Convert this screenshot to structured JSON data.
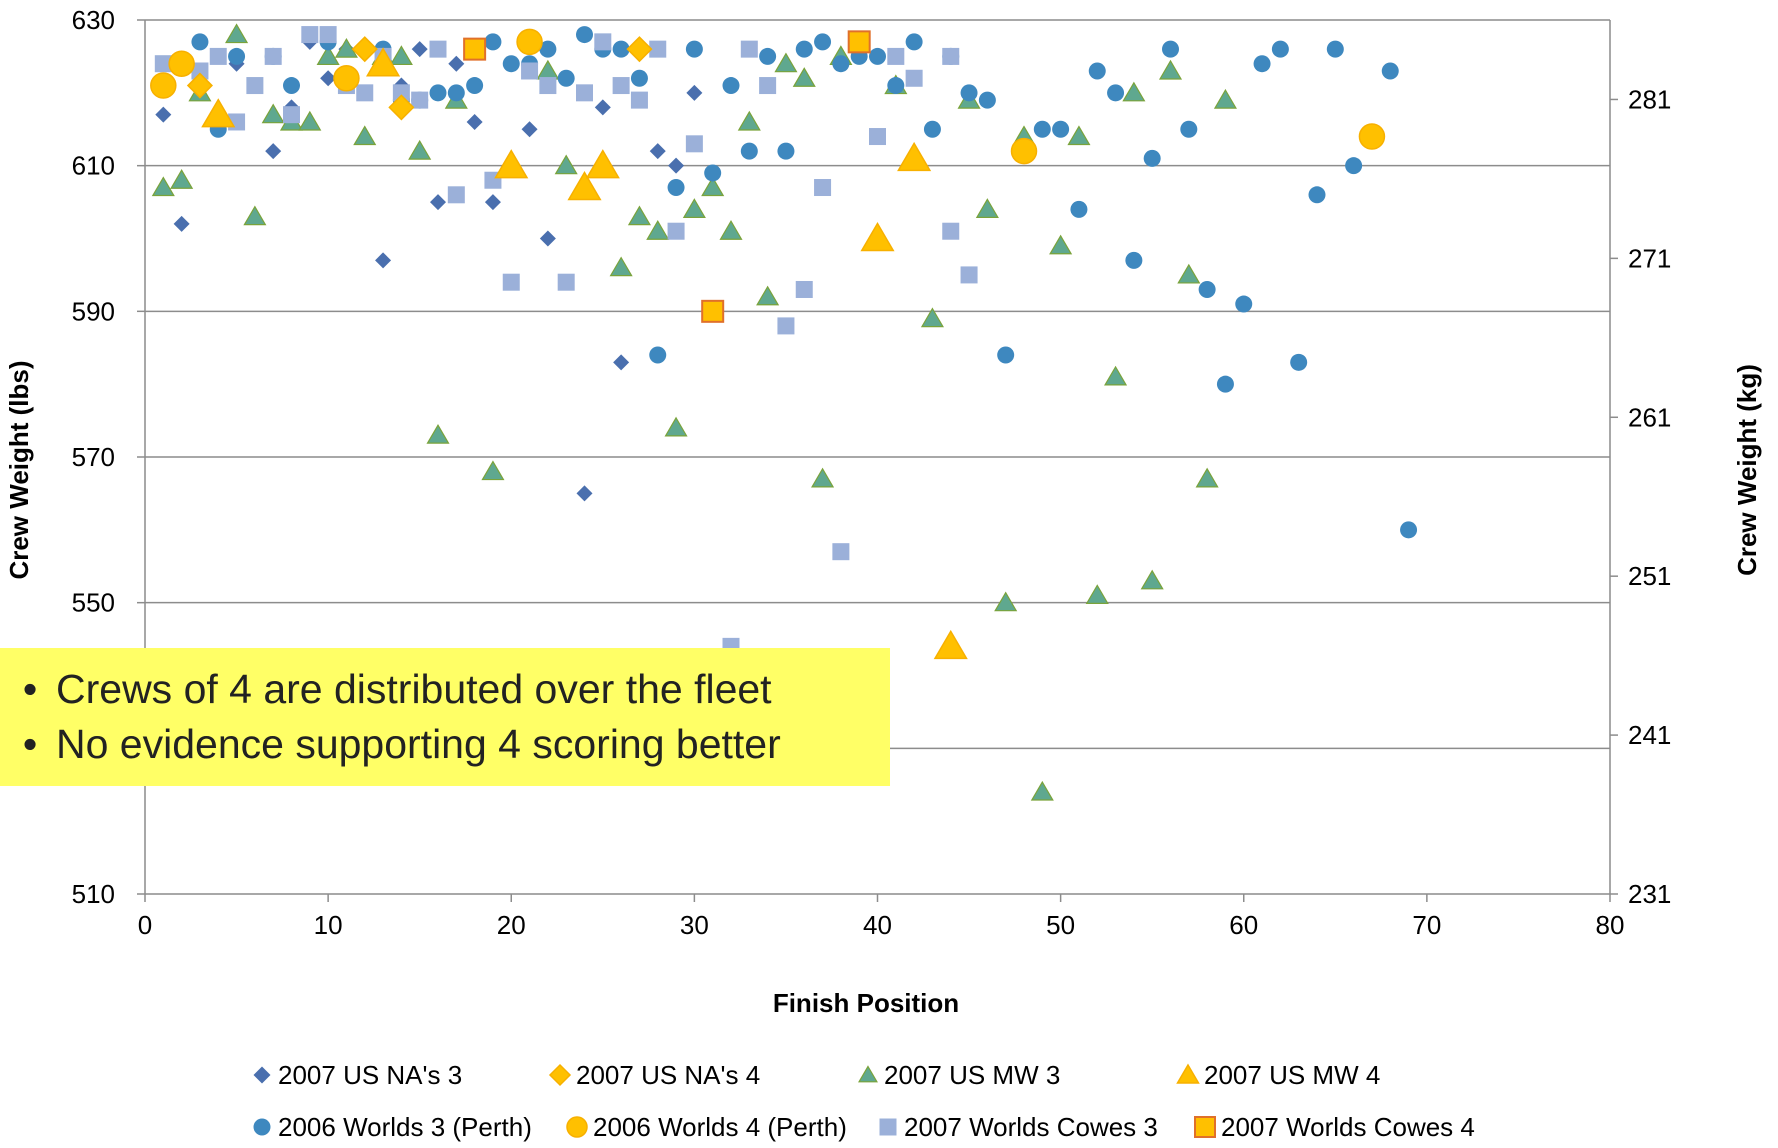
{
  "chart_data": {
    "type": "scatter",
    "xlabel": "Finish Position",
    "ylabel": "Crew Weight (lbs)",
    "y2label": "Crew Weight (kg)",
    "xlim": [
      0,
      80
    ],
    "ylim": [
      510,
      630
    ],
    "y2lim": [
      231,
      286
    ],
    "x_ticks": [
      "0",
      "10",
      "20",
      "30",
      "40",
      "50",
      "60",
      "70",
      "80"
    ],
    "y_ticks": [
      "510",
      "550",
      "570",
      "590",
      "610",
      "630"
    ],
    "y2_ticks": [
      "231",
      "241",
      "251",
      "261",
      "271",
      "281"
    ],
    "grid": "horizontal",
    "legend_position": "bottom",
    "series": [
      {
        "name": "2007 US NA's 3",
        "marker": "diamond",
        "color": "#4a6fae",
        "small": true,
        "points": [
          [
            1,
            617
          ],
          [
            2,
            602
          ],
          [
            3,
            621
          ],
          [
            5,
            624
          ],
          [
            6,
            621
          ],
          [
            7,
            612
          ],
          [
            8,
            618
          ],
          [
            9,
            627
          ],
          [
            10,
            622
          ],
          [
            11,
            626
          ],
          [
            12,
            626
          ],
          [
            13,
            597
          ],
          [
            14,
            621
          ],
          [
            15,
            626
          ],
          [
            16,
            605
          ],
          [
            17,
            624
          ],
          [
            18,
            616
          ],
          [
            19,
            605
          ],
          [
            21,
            615
          ],
          [
            22,
            600
          ],
          [
            24,
            565
          ],
          [
            25,
            618
          ],
          [
            26,
            583
          ],
          [
            28,
            612
          ],
          [
            29,
            610
          ],
          [
            30,
            620
          ]
        ]
      },
      {
        "name": "2007 US NA's 4",
        "marker": "diamond",
        "color": "#ffc000",
        "small": false,
        "points": [
          [
            3,
            621
          ],
          [
            12,
            626
          ],
          [
            14,
            618
          ],
          [
            27,
            626
          ]
        ]
      },
      {
        "name": "2007 US MW 3",
        "marker": "triangle",
        "color": "#5fa88f",
        "small": true,
        "points": [
          [
            1,
            607
          ],
          [
            2,
            608
          ],
          [
            3,
            620
          ],
          [
            5,
            628
          ],
          [
            6,
            603
          ],
          [
            7,
            617
          ],
          [
            8,
            616
          ],
          [
            9,
            616
          ],
          [
            10,
            625
          ],
          [
            11,
            626
          ],
          [
            12,
            614
          ],
          [
            13,
            625
          ],
          [
            14,
            625
          ],
          [
            15,
            612
          ],
          [
            16,
            573
          ],
          [
            17,
            619
          ],
          [
            19,
            568
          ],
          [
            22,
            623
          ],
          [
            23,
            610
          ],
          [
            26,
            596
          ],
          [
            27,
            603
          ],
          [
            28,
            601
          ],
          [
            29,
            574
          ],
          [
            30,
            604
          ],
          [
            31,
            607
          ],
          [
            32,
            601
          ],
          [
            33,
            616
          ],
          [
            34,
            592
          ],
          [
            35,
            624
          ],
          [
            36,
            622
          ],
          [
            37,
            567
          ],
          [
            38,
            625
          ],
          [
            41,
            621
          ],
          [
            43,
            589
          ],
          [
            45,
            619
          ],
          [
            46,
            604
          ],
          [
            47,
            550
          ],
          [
            48,
            614
          ],
          [
            49,
            524
          ],
          [
            50,
            599
          ],
          [
            51,
            614
          ],
          [
            52,
            551
          ],
          [
            53,
            581
          ],
          [
            54,
            620
          ],
          [
            55,
            553
          ],
          [
            56,
            623
          ],
          [
            57,
            595
          ],
          [
            58,
            567
          ],
          [
            59,
            619
          ]
        ]
      },
      {
        "name": "2007 US MW 4",
        "marker": "triangle",
        "color": "#ffc000",
        "small": false,
        "points": [
          [
            4,
            617
          ],
          [
            13,
            624
          ],
          [
            20,
            610
          ],
          [
            24,
            607
          ],
          [
            25,
            610
          ],
          [
            40,
            600
          ],
          [
            42,
            611
          ],
          [
            44,
            544
          ]
        ]
      },
      {
        "name": "2006 Worlds 3 (Perth)",
        "marker": "circle",
        "color": "#3e88bf",
        "small": true,
        "points": [
          [
            3,
            627
          ],
          [
            4,
            615
          ],
          [
            5,
            625
          ],
          [
            7,
            625
          ],
          [
            8,
            621
          ],
          [
            10,
            627
          ],
          [
            12,
            626
          ],
          [
            13,
            626
          ],
          [
            14,
            619
          ],
          [
            15,
            619
          ],
          [
            16,
            620
          ],
          [
            17,
            620
          ],
          [
            18,
            621
          ],
          [
            19,
            627
          ],
          [
            20,
            624
          ],
          [
            21,
            624
          ],
          [
            22,
            626
          ],
          [
            23,
            622
          ],
          [
            24,
            628
          ],
          [
            25,
            626
          ],
          [
            26,
            626
          ],
          [
            27,
            622
          ],
          [
            28,
            584
          ],
          [
            29,
            607
          ],
          [
            30,
            626
          ],
          [
            31,
            609
          ],
          [
            32,
            621
          ],
          [
            33,
            612
          ],
          [
            34,
            625
          ],
          [
            35,
            612
          ],
          [
            36,
            626
          ],
          [
            37,
            627
          ],
          [
            38,
            624
          ],
          [
            39,
            625
          ],
          [
            40,
            625
          ],
          [
            41,
            621
          ],
          [
            42,
            627
          ],
          [
            43,
            615
          ],
          [
            44,
            625
          ],
          [
            45,
            620
          ],
          [
            46,
            619
          ],
          [
            47,
            584
          ],
          [
            49,
            615
          ],
          [
            50,
            615
          ],
          [
            51,
            604
          ],
          [
            52,
            623
          ],
          [
            53,
            620
          ],
          [
            54,
            597
          ],
          [
            55,
            611
          ],
          [
            56,
            626
          ],
          [
            57,
            615
          ],
          [
            58,
            593
          ],
          [
            59,
            580
          ],
          [
            60,
            591
          ],
          [
            61,
            624
          ],
          [
            62,
            626
          ],
          [
            63,
            583
          ],
          [
            64,
            606
          ],
          [
            65,
            626
          ],
          [
            66,
            610
          ],
          [
            68,
            623
          ],
          [
            69,
            560
          ]
        ]
      },
      {
        "name": "2006 Worlds 4 (Perth)",
        "marker": "circle",
        "color": "#ffc000",
        "small": false,
        "points": [
          [
            1,
            621
          ],
          [
            2,
            624
          ],
          [
            11,
            622
          ],
          [
            21,
            627
          ],
          [
            48,
            612
          ],
          [
            67,
            614
          ]
        ]
      },
      {
        "name": "2007 Worlds Cowes 3",
        "marker": "square",
        "color": "#9bb0d9",
        "small": true,
        "points": [
          [
            1,
            624
          ],
          [
            2,
            624
          ],
          [
            3,
            623
          ],
          [
            4,
            625
          ],
          [
            5,
            616
          ],
          [
            6,
            621
          ],
          [
            7,
            625
          ],
          [
            8,
            617
          ],
          [
            9,
            628
          ],
          [
            10,
            628
          ],
          [
            11,
            621
          ],
          [
            12,
            620
          ],
          [
            13,
            625
          ],
          [
            14,
            620
          ],
          [
            15,
            619
          ],
          [
            16,
            626
          ],
          [
            17,
            606
          ],
          [
            19,
            608
          ],
          [
            20,
            594
          ],
          [
            21,
            623
          ],
          [
            22,
            621
          ],
          [
            23,
            594
          ],
          [
            24,
            620
          ],
          [
            25,
            627
          ],
          [
            26,
            621
          ],
          [
            27,
            619
          ],
          [
            28,
            626
          ],
          [
            29,
            601
          ],
          [
            30,
            613
          ],
          [
            32,
            544
          ],
          [
            33,
            626
          ],
          [
            34,
            621
          ],
          [
            35,
            588
          ],
          [
            36,
            593
          ],
          [
            37,
            607
          ],
          [
            38,
            557
          ],
          [
            40,
            614
          ],
          [
            41,
            625
          ],
          [
            42,
            622
          ],
          [
            44,
            625
          ],
          [
            44,
            601
          ],
          [
            45,
            595
          ]
        ]
      },
      {
        "name": "2007 Worlds Cowes 4",
        "marker": "square",
        "color": "#ffc000",
        "small": false,
        "points": [
          [
            18,
            626
          ],
          [
            31,
            590
          ],
          [
            39,
            627
          ]
        ]
      }
    ]
  },
  "callout": {
    "bullet": "•",
    "items": [
      "Crews of 4 are distributed over the fleet",
      "No evidence supporting 4 scoring better"
    ]
  }
}
